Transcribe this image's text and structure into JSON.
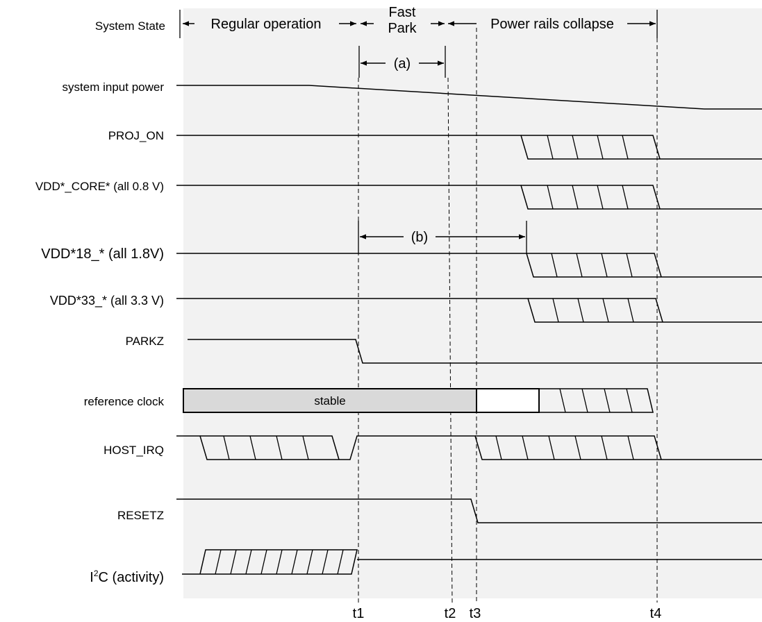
{
  "header": {
    "state_label": "System State",
    "phases": [
      "Regular operation",
      "Fast",
      "Park",
      "Power rails collapse"
    ]
  },
  "markers": {
    "a": "(a)",
    "b": "(b)"
  },
  "signals": [
    "system input power",
    "PROJ_ON",
    "VDD*_CORE* (all 0.8 V)",
    "VDD*18_* (all 1.8V)",
    "VDD*33_* (all 3.3 V)",
    "PARKZ",
    "reference clock",
    "HOST_IRQ",
    "RESETZ",
    "I2C (activity)"
  ],
  "i2c_label": {
    "base": "I",
    "sup": "2",
    "rest": "C (activity)"
  },
  "clock_state": "stable",
  "time_labels": [
    "t1",
    "t2",
    "t3",
    "t4"
  ],
  "colors": {
    "background_band": "#f2f2f2",
    "stable_fill": "#d9d9d9",
    "line": "#000000"
  }
}
